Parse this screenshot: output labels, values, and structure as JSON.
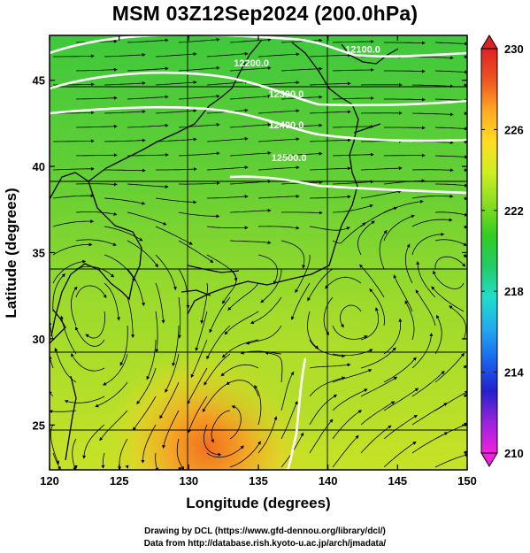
{
  "title": "MSM 03Z12Sep2024 (200.0hPa)",
  "axes": {
    "xlabel": "Longitude (degrees)",
    "ylabel": "Latitude  (degrees)",
    "xticks": [
      "120",
      "125",
      "130",
      "135",
      "140",
      "145",
      "150"
    ],
    "yticks": [
      "25",
      "30",
      "35",
      "40",
      "45"
    ],
    "xlim": [
      120,
      150
    ],
    "ylim": [
      22.4,
      47.6
    ]
  },
  "contours": [
    {
      "label": "12100.0",
      "lon": 142.5,
      "lat": 46.6
    },
    {
      "label": "12200.0",
      "lon": 134.5,
      "lat": 45.8
    },
    {
      "label": "12300.0",
      "lon": 137.0,
      "lat": 44.0
    },
    {
      "label": "12400.0",
      "lon": 137.0,
      "lat": 42.2
    },
    {
      "label": "12500.0",
      "lon": 137.2,
      "lat": 40.3
    }
  ],
  "colorbar": {
    "ticks": [
      "230",
      "226",
      "222",
      "218",
      "214",
      "210"
    ],
    "min": 210,
    "max": 230,
    "colors": [
      "#ee22dd",
      "#9a22dd",
      "#2222cc",
      "#1a66ee",
      "#22aaee",
      "#22ddcc",
      "#22cc66",
      "#33cc22",
      "#88dd22",
      "#ccee22",
      "#ffdd22",
      "#ffaa22",
      "#ee5522",
      "#dd2222"
    ]
  },
  "legend_colors": {
    "field_low": "#3ec83a",
    "field_mid": "#a8dc2c",
    "field_high": "#f2a020",
    "contour": "#ffffff",
    "streamline": "#000000"
  },
  "credits": {
    "line1": "Drawing by DCL (https://www.gfd-dennou.org/library/dcl/)",
    "line2": "Data from http://database.rish.kyoto-u.ac.jp/arch/jmadata/"
  }
}
